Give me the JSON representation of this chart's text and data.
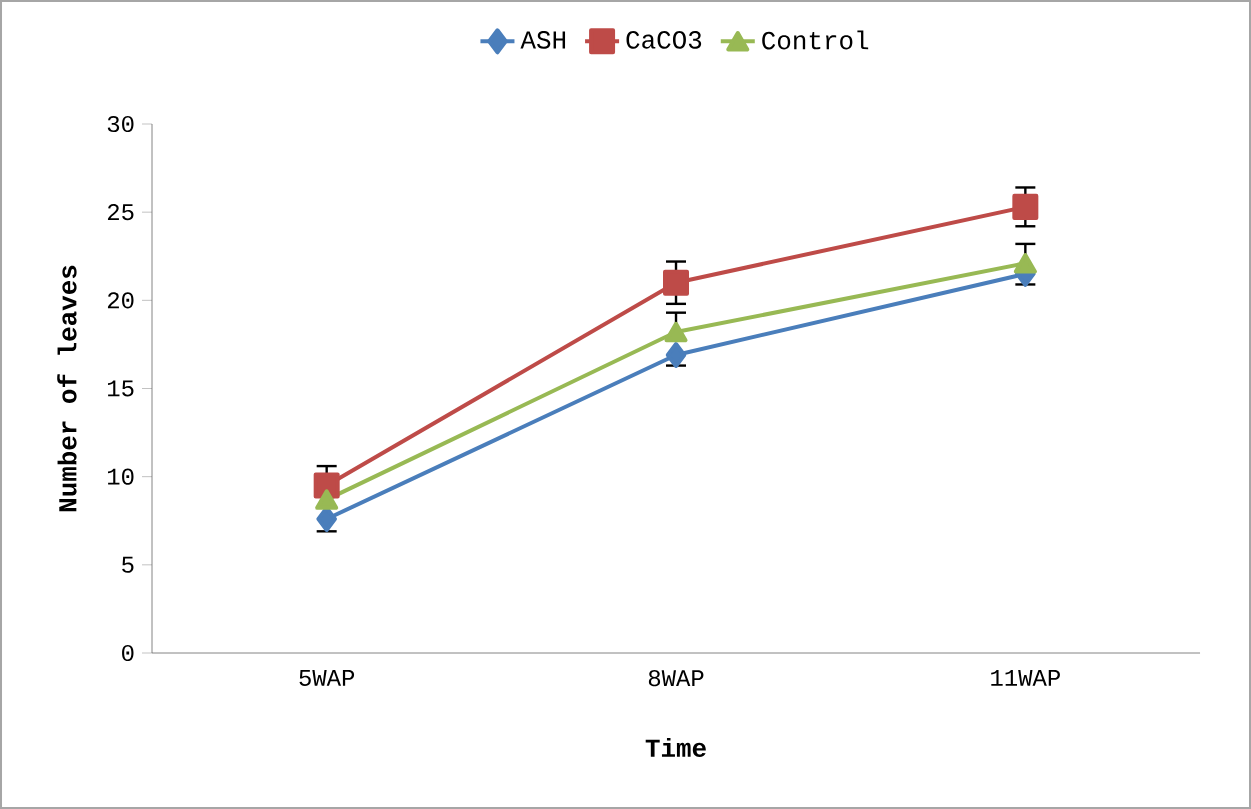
{
  "chart_data": {
    "type": "line",
    "xlabel": "Time",
    "ylabel": "Number of leaves",
    "categories": [
      "5WAP",
      "8WAP",
      "11WAP"
    ],
    "series": [
      {
        "name": "ASH",
        "color": "#4a7ebb",
        "marker": "diamond",
        "values": [
          7.6,
          16.9,
          21.5
        ],
        "errors": [
          [
            6.9,
            7.6
          ],
          [
            16.3,
            16.9
          ],
          [
            20.9,
            21.5
          ]
        ]
      },
      {
        "name": "CaCO3",
        "color": "#be4b48",
        "marker": "square",
        "values": [
          9.5,
          21.0,
          25.3
        ],
        "errors": [
          [
            9.5,
            10.6
          ],
          [
            19.8,
            22.2
          ],
          [
            24.2,
            26.4
          ]
        ]
      },
      {
        "name": "Control",
        "color": "#98b954",
        "marker": "triangle",
        "values": [
          8.7,
          18.2,
          22.1
        ],
        "errors": [
          null,
          [
            18.2,
            19.3
          ],
          [
            22.1,
            23.2
          ]
        ]
      }
    ],
    "ylim": [
      0,
      30
    ],
    "yticks": [
      0,
      5,
      10,
      15,
      20,
      25,
      30
    ],
    "grid": false,
    "legend": "top"
  }
}
